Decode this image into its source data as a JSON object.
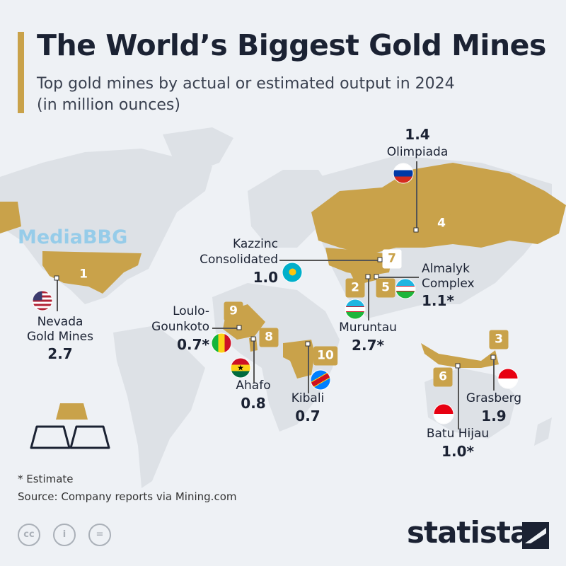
{
  "title": "The World’s Biggest Gold Mines",
  "subtitle": "Top gold mines by actual or estimated output in 2024 (in million ounces)",
  "colors": {
    "accent": "#c9a24a",
    "land": "#dde1e6",
    "background": "#eef1f5",
    "text": "#1b2233"
  },
  "watermark": "MediaBBG",
  "mines": [
    {
      "rank": "1",
      "name": "Nevada Gold Mines",
      "value": "2.7",
      "country_flag": "us-flag"
    },
    {
      "rank": "2",
      "name": "Muruntau",
      "value": "2.7*",
      "country_flag": "uzbekistan-flag"
    },
    {
      "rank": "3",
      "name": "Grasberg",
      "value": "1.9",
      "country_flag": "indonesia-flag"
    },
    {
      "rank": "4",
      "name": "Olimpiada",
      "value": "1.4",
      "country_flag": "russia-flag"
    },
    {
      "rank": "5",
      "name": "Almalyk Complex",
      "value": "1.1*",
      "country_flag": "uzbekistan-flag"
    },
    {
      "rank": "6",
      "name": "Batu Hijau",
      "value": "1.0*",
      "country_flag": "indonesia-flag"
    },
    {
      "rank": "7",
      "name": "Kazzinc Consolidated",
      "value": "1.0",
      "country_flag": "kazakhstan-flag"
    },
    {
      "rank": "8",
      "name": "Ahafo",
      "value": "0.8",
      "country_flag": "ghana-flag"
    },
    {
      "rank": "9",
      "name": "Loulo-Gounkoto",
      "value": "0.7*",
      "country_flag": "mali-flag"
    },
    {
      "rank": "10",
      "name": "Kibali",
      "value": "0.7",
      "country_flag": "dr-congo-flag"
    }
  ],
  "name_lines": {
    "nevada_1": "Nevada",
    "nevada_2": "Gold Mines",
    "kazzinc_1": "Kazzinc",
    "kazzinc_2": "Consolidated",
    "almalyk_1": "Almalyk",
    "almalyk_2": "Complex",
    "loulo_1": "Loulo-",
    "loulo_2": "Gounkoto"
  },
  "footnote": "* Estimate",
  "source": "Source: Company reports via Mining.com",
  "license_icons": [
    "cc-icon",
    "attribution-icon",
    "no-derivatives-icon"
  ],
  "license_glyphs": {
    "cc": "cc",
    "by": "i",
    "nd": "="
  },
  "brand": "statista"
}
